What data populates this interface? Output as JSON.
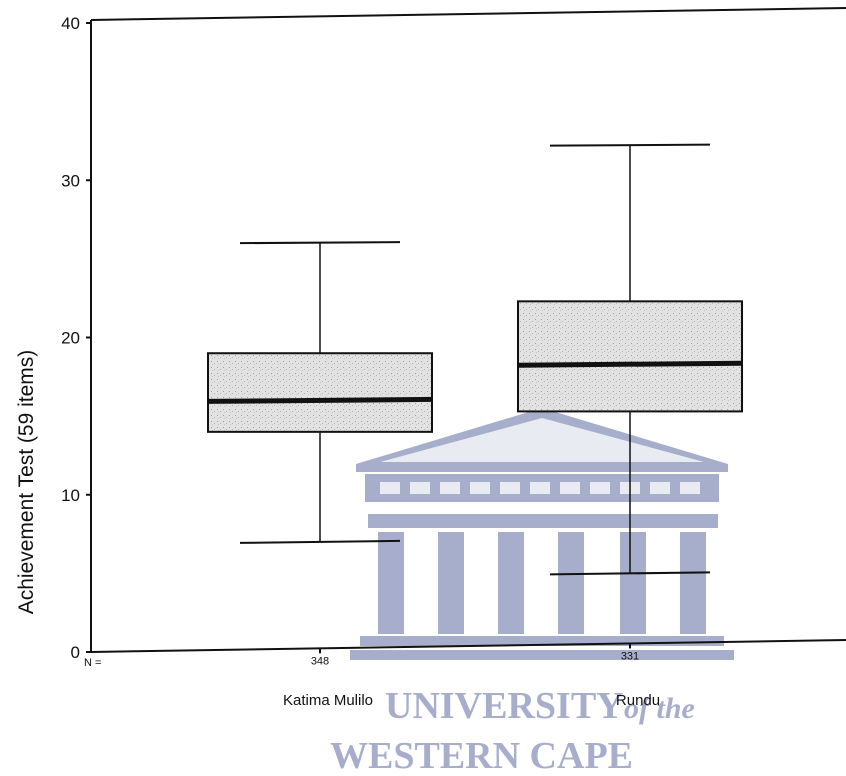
{
  "chart_data": {
    "type": "box",
    "ylabel": "Achievement Test (59 items)",
    "ylim": [
      0,
      40
    ],
    "yticks": [
      0,
      10,
      20,
      30,
      40
    ],
    "n_prefix": "N =",
    "categories": [
      "Katima Mulilo",
      "Rundu"
    ],
    "boxes": [
      {
        "category": "Katima Mulilo",
        "n": "348",
        "min": 7,
        "q1": 14,
        "median": 16,
        "q3": 19,
        "max": 26
      },
      {
        "category": "Rundu",
        "n": "331",
        "min": 5,
        "q1": 15.3,
        "median": 18.3,
        "q3": 22.3,
        "max": 32.2
      }
    ],
    "colors": {
      "box_fill": "#dcdcdc",
      "line": "#111111",
      "watermark": "#a7aecb"
    }
  },
  "watermark": {
    "line1": "UNIVERSITY",
    "line1_suffix": "of the",
    "line2": "WESTERN CAPE"
  }
}
